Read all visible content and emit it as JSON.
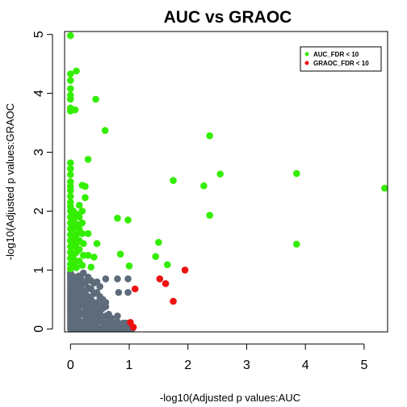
{
  "chart_data": {
    "type": "scatter",
    "title": "AUC vs GRAOC",
    "xlabel": "-log10(Adjusted p values:AUC",
    "ylabel": "-log10(Adjusted p values:GRAOC",
    "xlim": [
      -0.1,
      5.4
    ],
    "ylim": [
      -0.05,
      5.05
    ],
    "x_ticks": [
      "0",
      "1",
      "2",
      "3",
      "4",
      "5"
    ],
    "y_ticks": [
      "0",
      "1",
      "2",
      "3",
      "4",
      "5"
    ],
    "legend_position": "top-right",
    "legend": [
      {
        "label": "AUC_FDR < 10",
        "color": "#33ee00"
      },
      {
        "label": "GRAOC_FDR < 10",
        "color": "#ee1111"
      }
    ],
    "series": [
      {
        "name": "none",
        "color": "#5e6b7a",
        "points": [
          [
            0.0,
            0.0
          ],
          [
            0.0,
            0.05
          ],
          [
            0.0,
            0.1
          ],
          [
            0.0,
            0.15
          ],
          [
            0.0,
            0.2
          ],
          [
            0.0,
            0.25
          ],
          [
            0.0,
            0.3
          ],
          [
            0.0,
            0.35
          ],
          [
            0.0,
            0.4
          ],
          [
            0.0,
            0.45
          ],
          [
            0.0,
            0.5
          ],
          [
            0.0,
            0.55
          ],
          [
            0.0,
            0.6
          ],
          [
            0.0,
            0.65
          ],
          [
            0.0,
            0.7
          ],
          [
            0.0,
            0.75
          ],
          [
            0.0,
            0.8
          ],
          [
            0.0,
            0.85
          ],
          [
            0.0,
            0.9
          ],
          [
            0.0,
            0.95
          ],
          [
            0.03,
            0.0
          ],
          [
            0.03,
            0.1
          ],
          [
            0.03,
            0.2
          ],
          [
            0.03,
            0.3
          ],
          [
            0.03,
            0.4
          ],
          [
            0.03,
            0.5
          ],
          [
            0.03,
            0.6
          ],
          [
            0.03,
            0.7
          ],
          [
            0.03,
            0.8
          ],
          [
            0.03,
            0.9
          ],
          [
            0.06,
            0.0
          ],
          [
            0.06,
            0.12
          ],
          [
            0.06,
            0.25
          ],
          [
            0.06,
            0.38
          ],
          [
            0.06,
            0.5
          ],
          [
            0.06,
            0.62
          ],
          [
            0.06,
            0.75
          ],
          [
            0.06,
            0.88
          ],
          [
            0.1,
            0.0
          ],
          [
            0.1,
            0.1
          ],
          [
            0.1,
            0.2
          ],
          [
            0.1,
            0.3
          ],
          [
            0.1,
            0.4
          ],
          [
            0.1,
            0.5
          ],
          [
            0.1,
            0.6
          ],
          [
            0.1,
            0.7
          ],
          [
            0.1,
            0.8
          ],
          [
            0.14,
            0.0
          ],
          [
            0.14,
            0.15
          ],
          [
            0.14,
            0.3
          ],
          [
            0.14,
            0.45
          ],
          [
            0.14,
            0.6
          ],
          [
            0.14,
            0.75
          ],
          [
            0.14,
            0.9
          ],
          [
            0.18,
            0.0
          ],
          [
            0.18,
            0.1
          ],
          [
            0.18,
            0.25
          ],
          [
            0.18,
            0.4
          ],
          [
            0.18,
            0.55
          ],
          [
            0.18,
            0.7
          ],
          [
            0.18,
            0.85
          ],
          [
            0.22,
            0.0
          ],
          [
            0.22,
            0.12
          ],
          [
            0.22,
            0.28
          ],
          [
            0.22,
            0.45
          ],
          [
            0.22,
            0.6
          ],
          [
            0.22,
            0.78
          ],
          [
            0.22,
            0.95
          ],
          [
            0.26,
            0.0
          ],
          [
            0.26,
            0.1
          ],
          [
            0.26,
            0.2
          ],
          [
            0.26,
            0.35
          ],
          [
            0.26,
            0.5
          ],
          [
            0.26,
            0.65
          ],
          [
            0.26,
            0.8
          ],
          [
            0.3,
            0.0
          ],
          [
            0.3,
            0.15
          ],
          [
            0.3,
            0.3
          ],
          [
            0.3,
            0.42
          ],
          [
            0.3,
            0.55
          ],
          [
            0.3,
            0.7
          ],
          [
            0.3,
            0.88
          ],
          [
            0.35,
            0.0
          ],
          [
            0.35,
            0.1
          ],
          [
            0.35,
            0.22
          ],
          [
            0.35,
            0.35
          ],
          [
            0.35,
            0.5
          ],
          [
            0.35,
            0.68
          ],
          [
            0.35,
            0.82
          ],
          [
            0.4,
            0.0
          ],
          [
            0.4,
            0.12
          ],
          [
            0.4,
            0.25
          ],
          [
            0.4,
            0.4
          ],
          [
            0.4,
            0.6
          ],
          [
            0.4,
            0.78
          ],
          [
            0.45,
            0.0
          ],
          [
            0.45,
            0.1
          ],
          [
            0.45,
            0.2
          ],
          [
            0.45,
            0.32
          ],
          [
            0.45,
            0.45
          ],
          [
            0.45,
            0.62
          ],
          [
            0.45,
            0.8
          ],
          [
            0.5,
            0.0
          ],
          [
            0.5,
            0.15
          ],
          [
            0.5,
            0.28
          ],
          [
            0.5,
            0.4
          ],
          [
            0.5,
            0.55
          ],
          [
            0.5,
            0.72
          ],
          [
            0.55,
            0.0
          ],
          [
            0.55,
            0.1
          ],
          [
            0.55,
            0.2
          ],
          [
            0.55,
            0.35
          ],
          [
            0.55,
            0.5
          ],
          [
            0.6,
            0.0
          ],
          [
            0.6,
            0.1
          ],
          [
            0.6,
            0.22
          ],
          [
            0.6,
            0.38
          ],
          [
            0.6,
            0.45
          ],
          [
            0.6,
            0.85
          ],
          [
            0.65,
            0.0
          ],
          [
            0.65,
            0.12
          ],
          [
            0.65,
            0.25
          ],
          [
            0.7,
            0.0
          ],
          [
            0.7,
            0.08
          ],
          [
            0.7,
            0.18
          ],
          [
            0.75,
            0.0
          ],
          [
            0.75,
            0.1
          ],
          [
            0.8,
            0.0
          ],
          [
            0.8,
            0.12
          ],
          [
            0.8,
            0.22
          ],
          [
            0.85,
            0.0
          ],
          [
            0.85,
            0.08
          ],
          [
            0.82,
            0.62
          ],
          [
            0.8,
            0.85
          ],
          [
            0.9,
            0.0
          ],
          [
            0.9,
            0.1
          ],
          [
            0.95,
            0.0
          ],
          [
            0.95,
            0.1
          ],
          [
            1.0,
            0.0
          ],
          [
            0.98,
            0.62
          ],
          [
            0.98,
            0.85
          ],
          [
            1.05,
            0.0
          ]
        ]
      },
      {
        "name": "AUC_FDR < 10",
        "color": "#33ee00",
        "points": [
          [
            0.0,
            4.98
          ],
          [
            0.0,
            4.33
          ],
          [
            0.0,
            4.22
          ],
          [
            0.1,
            4.38
          ],
          [
            0.0,
            4.08
          ],
          [
            0.0,
            3.97
          ],
          [
            0.0,
            3.9
          ],
          [
            0.0,
            3.75
          ],
          [
            0.0,
            3.7
          ],
          [
            0.08,
            3.72
          ],
          [
            0.43,
            3.9
          ],
          [
            0.59,
            3.37
          ],
          [
            0.0,
            2.82
          ],
          [
            0.0,
            2.72
          ],
          [
            0.0,
            2.62
          ],
          [
            0.0,
            2.5
          ],
          [
            0.0,
            2.42
          ],
          [
            0.0,
            2.35
          ],
          [
            0.0,
            2.25
          ],
          [
            0.0,
            2.15
          ],
          [
            0.0,
            2.08
          ],
          [
            0.0,
            2.0
          ],
          [
            0.0,
            1.9
          ],
          [
            0.0,
            1.8
          ],
          [
            0.0,
            1.7
          ],
          [
            0.0,
            1.6
          ],
          [
            0.0,
            1.5
          ],
          [
            0.0,
            1.4
          ],
          [
            0.0,
            1.3
          ],
          [
            0.0,
            1.2
          ],
          [
            0.0,
            1.1
          ],
          [
            0.0,
            1.02
          ],
          [
            0.05,
            2.0
          ],
          [
            0.05,
            1.85
          ],
          [
            0.05,
            1.7
          ],
          [
            0.05,
            1.55
          ],
          [
            0.05,
            1.4
          ],
          [
            0.05,
            1.25
          ],
          [
            0.05,
            1.1
          ],
          [
            0.1,
            1.95
          ],
          [
            0.1,
            1.78
          ],
          [
            0.1,
            1.6
          ],
          [
            0.1,
            1.45
          ],
          [
            0.1,
            1.3
          ],
          [
            0.1,
            1.15
          ],
          [
            0.1,
            1.04
          ],
          [
            0.15,
            2.1
          ],
          [
            0.15,
            1.9
          ],
          [
            0.15,
            1.7
          ],
          [
            0.15,
            1.5
          ],
          [
            0.15,
            1.35
          ],
          [
            0.15,
            1.15
          ],
          [
            0.2,
            2.44
          ],
          [
            0.25,
            2.42
          ],
          [
            0.25,
            2.23
          ],
          [
            0.2,
            2.0
          ],
          [
            0.2,
            1.8
          ],
          [
            0.2,
            1.62
          ],
          [
            0.22,
            1.45
          ],
          [
            0.22,
            1.25
          ],
          [
            0.2,
            1.08
          ],
          [
            0.3,
            2.88
          ],
          [
            0.3,
            1.62
          ],
          [
            0.3,
            1.25
          ],
          [
            0.35,
            1.05
          ],
          [
            0.4,
            1.22
          ],
          [
            0.45,
            1.45
          ],
          [
            0.8,
            1.88
          ],
          [
            0.98,
            1.85
          ],
          [
            0.85,
            1.27
          ],
          [
            1.0,
            1.07
          ],
          [
            1.5,
            1.47
          ],
          [
            1.45,
            1.23
          ],
          [
            1.65,
            1.09
          ],
          [
            1.75,
            2.52
          ],
          [
            2.27,
            2.43
          ],
          [
            2.37,
            3.28
          ],
          [
            2.37,
            1.93
          ],
          [
            2.55,
            2.63
          ],
          [
            3.85,
            2.64
          ],
          [
            3.85,
            1.44
          ],
          [
            5.35,
            2.39
          ]
        ]
      },
      {
        "name": "GRAOC_FDR < 10",
        "color": "#ee1111",
        "points": [
          [
            1.1,
            0.68
          ],
          [
            1.52,
            0.85
          ],
          [
            1.62,
            0.77
          ],
          [
            1.75,
            0.47
          ],
          [
            1.95,
            1.0
          ],
          [
            1.02,
            0.11
          ],
          [
            1.07,
            0.03
          ]
        ]
      }
    ]
  }
}
